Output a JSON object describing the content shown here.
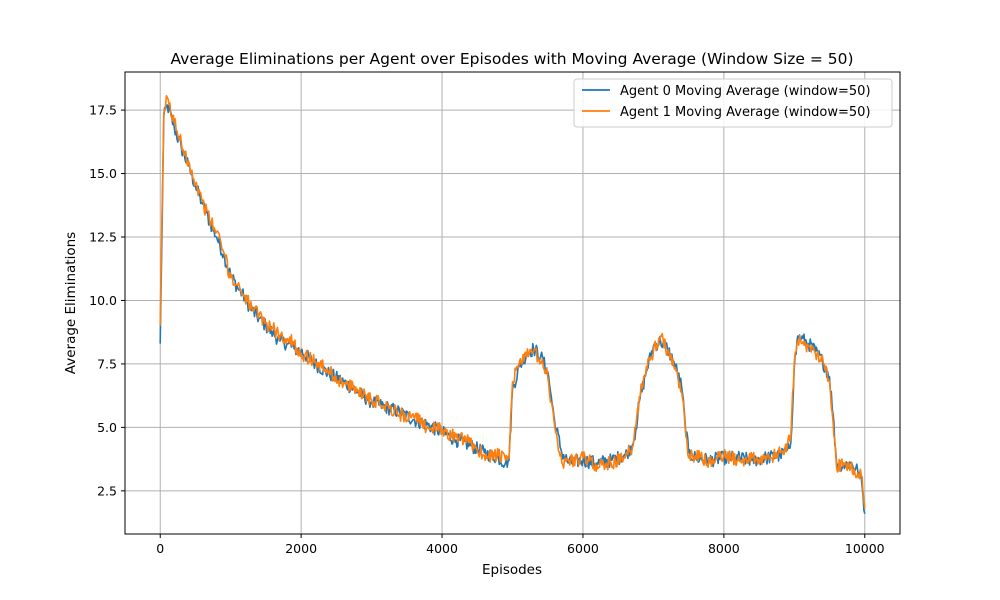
{
  "chart_data": {
    "type": "line",
    "title": "Average Eliminations per Agent over Episodes with Moving Average (Window Size = 50)",
    "xlabel": "Episodes",
    "ylabel": "Average Eliminations",
    "xlim": [
      -500,
      10500
    ],
    "ylim": [
      0.8,
      19.0
    ],
    "xticks": [
      0,
      2000,
      4000,
      6000,
      8000,
      10000
    ],
    "yticks": [
      2.5,
      5.0,
      7.5,
      10.0,
      12.5,
      15.0,
      17.5
    ],
    "xtick_labels": [
      "0",
      "2000",
      "4000",
      "6000",
      "8000",
      "10000"
    ],
    "ytick_labels": [
      "2.5",
      "5.0",
      "7.5",
      "10.0",
      "12.5",
      "15.0",
      "17.5"
    ],
    "grid": true,
    "legend_position": "top-right",
    "series": [
      {
        "name": "Agent 0 Moving Average (window=50)",
        "color": "#1f77b4",
        "x": [
          0,
          50,
          100,
          200,
          300,
          400,
          500,
          600,
          700,
          800,
          900,
          1000,
          1100,
          1200,
          1300,
          1400,
          1500,
          1600,
          1700,
          1800,
          1900,
          2000,
          2200,
          2400,
          2600,
          2800,
          3000,
          3200,
          3400,
          3600,
          3800,
          4000,
          4200,
          4400,
          4600,
          4800,
          4900,
          4950,
          5000,
          5100,
          5200,
          5300,
          5400,
          5500,
          5550,
          5600,
          5700,
          5800,
          6000,
          6200,
          6400,
          6600,
          6700,
          6750,
          6800,
          6900,
          7000,
          7100,
          7200,
          7300,
          7400,
          7450,
          7500,
          7600,
          7800,
          8000,
          8200,
          8400,
          8600,
          8800,
          8900,
          8950,
          9000,
          9050,
          9100,
          9200,
          9300,
          9400,
          9500,
          9550,
          9600,
          9700,
          9800,
          9900,
          9950,
          10000
        ],
        "y": [
          8.3,
          17.2,
          17.7,
          16.8,
          16.0,
          15.3,
          14.5,
          13.8,
          13.1,
          12.5,
          11.8,
          11.0,
          10.5,
          10.1,
          9.6,
          9.3,
          9.0,
          8.7,
          8.4,
          8.3,
          8.1,
          8.0,
          7.5,
          7.1,
          6.8,
          6.4,
          6.0,
          5.8,
          5.6,
          5.3,
          5.1,
          4.8,
          4.5,
          4.3,
          4.0,
          3.8,
          3.6,
          3.7,
          6.5,
          7.4,
          7.9,
          8.1,
          7.8,
          7.2,
          6.2,
          5.2,
          4.0,
          3.6,
          3.7,
          3.6,
          3.7,
          3.9,
          4.3,
          4.9,
          6.0,
          7.2,
          8.2,
          8.4,
          8.1,
          7.5,
          6.6,
          5.2,
          4.0,
          3.8,
          3.7,
          3.8,
          3.8,
          3.7,
          3.8,
          3.9,
          4.1,
          4.4,
          7.4,
          8.6,
          8.5,
          8.3,
          8.0,
          7.6,
          7.0,
          5.5,
          3.6,
          3.5,
          3.6,
          3.3,
          3.0,
          1.6
        ]
      },
      {
        "name": "Agent 1 Moving Average (window=50)",
        "color": "#ff7f0e",
        "x": [
          0,
          50,
          100,
          200,
          300,
          400,
          500,
          600,
          700,
          800,
          900,
          1000,
          1100,
          1200,
          1300,
          1400,
          1500,
          1600,
          1700,
          1800,
          1900,
          2000,
          2200,
          2400,
          2600,
          2800,
          3000,
          3200,
          3400,
          3600,
          3800,
          4000,
          4200,
          4400,
          4600,
          4800,
          4900,
          4950,
          5000,
          5100,
          5200,
          5300,
          5400,
          5500,
          5550,
          5600,
          5700,
          5800,
          6000,
          6200,
          6400,
          6600,
          6700,
          6750,
          6800,
          6900,
          7000,
          7100,
          7200,
          7300,
          7400,
          7450,
          7500,
          7600,
          7800,
          8000,
          8200,
          8400,
          8600,
          8800,
          8900,
          8950,
          9000,
          9050,
          9100,
          9200,
          9300,
          9400,
          9500,
          9550,
          9600,
          9700,
          9800,
          9900,
          9950,
          10000
        ],
        "y": [
          9.0,
          17.4,
          18.0,
          17.0,
          16.2,
          15.5,
          14.6,
          13.9,
          13.2,
          12.7,
          11.9,
          10.9,
          10.6,
          10.2,
          9.7,
          9.4,
          9.1,
          8.9,
          8.6,
          8.5,
          8.3,
          7.9,
          7.6,
          7.2,
          6.7,
          6.5,
          6.1,
          5.9,
          5.5,
          5.4,
          5.0,
          4.9,
          4.6,
          4.4,
          3.9,
          3.9,
          3.7,
          3.8,
          6.8,
          7.6,
          7.8,
          8.0,
          7.6,
          7.0,
          6.0,
          5.0,
          3.6,
          3.7,
          3.8,
          3.5,
          3.6,
          3.8,
          4.2,
          5.0,
          6.2,
          7.4,
          8.0,
          8.6,
          8.0,
          7.3,
          6.4,
          5.0,
          3.8,
          3.9,
          3.6,
          3.9,
          3.7,
          3.8,
          3.7,
          4.0,
          4.3,
          4.6,
          7.6,
          8.4,
          8.3,
          8.2,
          7.9,
          7.8,
          6.8,
          5.2,
          3.4,
          3.6,
          3.4,
          3.2,
          3.1,
          1.8
        ]
      }
    ]
  }
}
